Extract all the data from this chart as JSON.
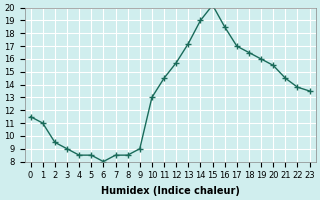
{
  "x": [
    0,
    1,
    2,
    3,
    4,
    5,
    6,
    7,
    8,
    9,
    10,
    11,
    12,
    13,
    14,
    15,
    16,
    17,
    18,
    19,
    20,
    21,
    22,
    23
  ],
  "y": [
    11.5,
    11.0,
    9.5,
    9.0,
    8.5,
    8.5,
    8.0,
    8.5,
    8.5,
    9.0,
    13.0,
    14.5,
    15.7,
    17.2,
    19.0,
    20.2,
    18.5,
    17.0,
    16.5,
    16.0,
    15.5,
    14.5,
    13.8,
    13.5
  ],
  "line_color": "#1a6b5a",
  "marker": "+",
  "marker_size": 5,
  "background_color": "#d0eeee",
  "grid_color": "#ffffff",
  "xlabel": "Humidex (Indice chaleur)",
  "xlim": [
    -0.5,
    23.5
  ],
  "ylim": [
    8,
    20
  ],
  "yticks": [
    8,
    9,
    10,
    11,
    12,
    13,
    14,
    15,
    16,
    17,
    18,
    19,
    20
  ],
  "xticks": [
    0,
    1,
    2,
    3,
    4,
    5,
    6,
    7,
    8,
    9,
    10,
    11,
    12,
    13,
    14,
    15,
    16,
    17,
    18,
    19,
    20,
    21,
    22,
    23
  ],
  "xtick_labels": [
    "0",
    "1",
    "2",
    "3",
    "4",
    "5",
    "6",
    "7",
    "8",
    "9",
    "10",
    "11",
    "12",
    "13",
    "14",
    "15",
    "16",
    "17",
    "18",
    "19",
    "20",
    "21",
    "22",
    "23"
  ],
  "xlabel_fontsize": 7,
  "tick_fontsize": 6
}
